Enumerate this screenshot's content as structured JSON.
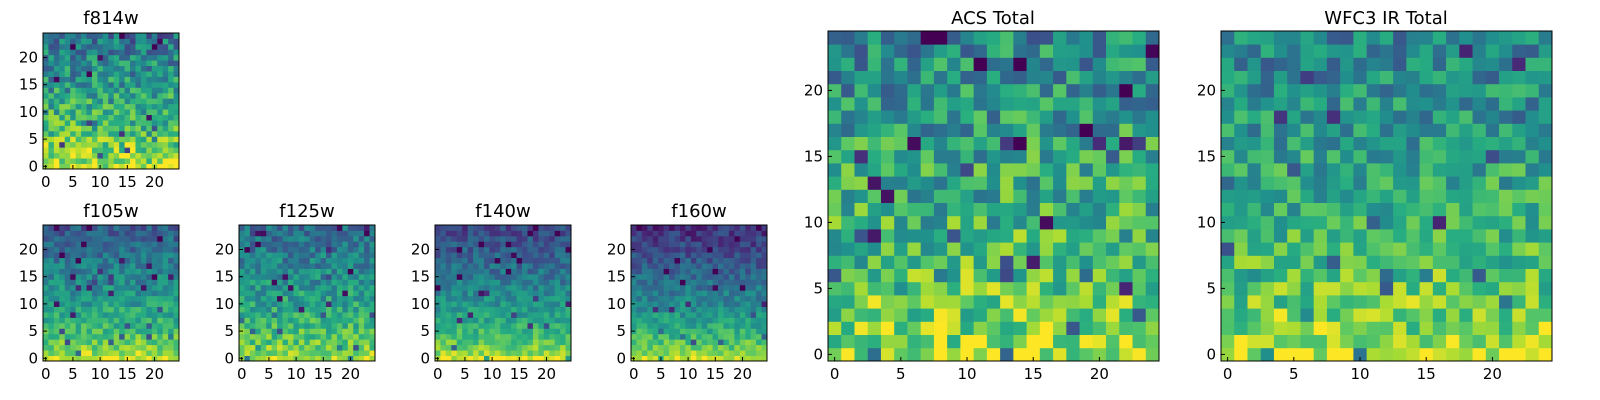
{
  "chart_data": [
    {
      "type": "heatmap",
      "title": "f814w",
      "grid_size": 25,
      "colormap": "viridis",
      "xticks": [
        "0",
        "5",
        "10",
        "15",
        "20"
      ],
      "yticks": [
        "0",
        "5",
        "10",
        "15",
        "20"
      ],
      "xlim": [
        -0.5,
        24.5
      ],
      "ylim": [
        -0.5,
        24.5
      ],
      "trend": {
        "bottom_row_intensity": 0.97,
        "top_row_intensity": 0.4,
        "noise": 0.22,
        "seed": 11
      }
    },
    {
      "type": "heatmap",
      "title": "f105w",
      "grid_size": 25,
      "colormap": "viridis",
      "xticks": [
        "0",
        "5",
        "10",
        "15",
        "20"
      ],
      "yticks": [
        "0",
        "5",
        "10",
        "15",
        "20"
      ],
      "xlim": [
        -0.5,
        24.5
      ],
      "ylim": [
        -0.5,
        24.5
      ],
      "trend": {
        "bottom_row_intensity": 0.95,
        "top_row_intensity": 0.3,
        "noise": 0.14,
        "seed": 23
      }
    },
    {
      "type": "heatmap",
      "title": "f125w",
      "grid_size": 25,
      "colormap": "viridis",
      "xticks": [
        "0",
        "5",
        "10",
        "15",
        "20"
      ],
      "yticks": [
        "0",
        "5",
        "10",
        "15",
        "20"
      ],
      "xlim": [
        -0.5,
        24.5
      ],
      "ylim": [
        -0.5,
        24.5
      ],
      "trend": {
        "bottom_row_intensity": 0.92,
        "top_row_intensity": 0.35,
        "noise": 0.16,
        "seed": 37
      }
    },
    {
      "type": "heatmap",
      "title": "f140w",
      "grid_size": 25,
      "colormap": "viridis",
      "xticks": [
        "0",
        "5",
        "10",
        "15",
        "20"
      ],
      "yticks": [
        "0",
        "5",
        "10",
        "15",
        "20"
      ],
      "xlim": [
        -0.5,
        24.5
      ],
      "ylim": [
        -0.5,
        24.5
      ],
      "trend": {
        "bottom_row_intensity": 0.95,
        "top_row_intensity": 0.22,
        "noise": 0.12,
        "seed": 41
      }
    },
    {
      "type": "heatmap",
      "title": "f160w",
      "grid_size": 25,
      "colormap": "viridis",
      "xticks": [
        "0",
        "5",
        "10",
        "15",
        "20"
      ],
      "yticks": [
        "0",
        "5",
        "10",
        "15",
        "20"
      ],
      "xlim": [
        -0.5,
        24.5
      ],
      "ylim": [
        -0.5,
        24.5
      ],
      "trend": {
        "bottom_row_intensity": 0.95,
        "top_row_intensity": 0.15,
        "noise": 0.12,
        "seed": 53
      }
    },
    {
      "type": "heatmap",
      "title": "ACS Total",
      "grid_size": 25,
      "colormap": "viridis",
      "xticks": [
        "0",
        "5",
        "10",
        "15",
        "20"
      ],
      "yticks": [
        "0",
        "5",
        "10",
        "15",
        "20"
      ],
      "xlim": [
        -0.5,
        24.5
      ],
      "ylim": [
        -0.5,
        24.5
      ],
      "trend": {
        "bottom_row_intensity": 0.9,
        "top_row_intensity": 0.48,
        "noise": 0.24,
        "seed": 67
      }
    },
    {
      "type": "heatmap",
      "title": "WFC3 IR Total",
      "grid_size": 25,
      "colormap": "viridis",
      "xticks": [
        "0",
        "5",
        "10",
        "15",
        "20"
      ],
      "yticks": [
        "0",
        "5",
        "10",
        "15",
        "20"
      ],
      "xlim": [
        -0.5,
        24.5
      ],
      "ylim": [
        -0.5,
        24.5
      ],
      "trend": {
        "bottom_row_intensity": 0.94,
        "top_row_intensity": 0.45,
        "noise": 0.2,
        "seed": 79
      }
    }
  ]
}
